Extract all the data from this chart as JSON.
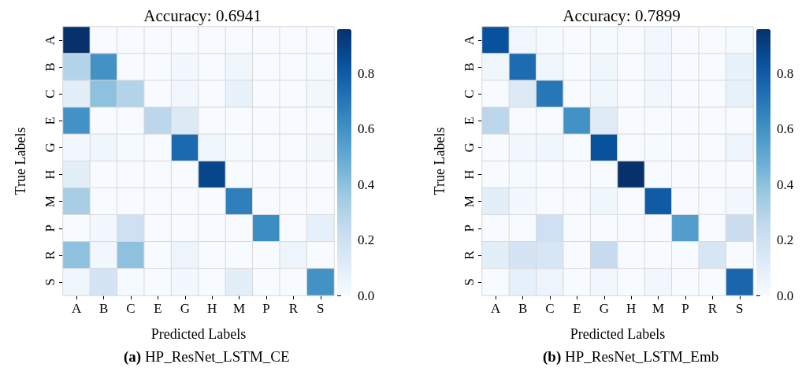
{
  "chart_data": [
    {
      "type": "heatmap",
      "title": "Accuracy: 0.6941",
      "xlabel": "Predicted Labels",
      "ylabel": "True Labels",
      "annotations": [
        "(a) HP_ResNet_LSTM_CE"
      ],
      "categories": [
        "A",
        "B",
        "C",
        "E",
        "G",
        "H",
        "M",
        "P",
        "R",
        "S"
      ],
      "y_categories": [
        "A",
        "B",
        "C",
        "E",
        "G",
        "H",
        "M",
        "P",
        "R",
        "S"
      ],
      "cells": [
        [
          0.96,
          0,
          0,
          0,
          0,
          0,
          0,
          0,
          0,
          0
        ],
        [
          0.3,
          0.6,
          0,
          0,
          0.02,
          0,
          0.04,
          0,
          0,
          0.01
        ],
        [
          0.1,
          0.4,
          0.3,
          0,
          0.03,
          0,
          0.07,
          0,
          0,
          0.03
        ],
        [
          0.6,
          0,
          0,
          0.27,
          0.13,
          0,
          0,
          0,
          0,
          0
        ],
        [
          0.02,
          0.04,
          0.01,
          0,
          0.75,
          0.04,
          0.01,
          0,
          0,
          0.03
        ],
        [
          0.1,
          0,
          0,
          0,
          0,
          0.88,
          0,
          0,
          0,
          0
        ],
        [
          0.33,
          0,
          0,
          0,
          0,
          0,
          0.67,
          0,
          0,
          0
        ],
        [
          0,
          0.02,
          0.2,
          0,
          0,
          0,
          0,
          0.62,
          0,
          0.08
        ],
        [
          0.4,
          0.03,
          0.4,
          0,
          0.05,
          0,
          0,
          0,
          0.05,
          0
        ],
        [
          0.04,
          0.17,
          0.01,
          0,
          0.02,
          0,
          0.1,
          0,
          0,
          0.6
        ]
      ],
      "clim": [
        0,
        0.96
      ],
      "cticks": [
        {
          "value": 0,
          "label": "0.0"
        },
        {
          "value": 0.2,
          "label": "0.2"
        },
        {
          "value": 0.4,
          "label": "0.4"
        },
        {
          "value": 0.6,
          "label": "0.6"
        },
        {
          "value": 0.8,
          "label": "0.8"
        }
      ]
    },
    {
      "type": "heatmap",
      "title": "Accuracy: 0.7899",
      "xlabel": "Predicted Labels",
      "ylabel": "True Labels",
      "annotations": [
        "(b) HP_ResNet_LSTM_Emb"
      ],
      "categories": [
        "A",
        "B",
        "C",
        "E",
        "G",
        "H",
        "M",
        "P",
        "R",
        "S"
      ],
      "y_categories": [
        "A",
        "B",
        "C",
        "E",
        "G",
        "H",
        "M",
        "P",
        "R",
        "S"
      ],
      "cells": [
        [
          0.84,
          0.03,
          0.01,
          0,
          0.01,
          0,
          0.03,
          0,
          0,
          0.01
        ],
        [
          0.04,
          0.74,
          0.04,
          0,
          0.04,
          0,
          0.03,
          0,
          0,
          0.07
        ],
        [
          0,
          0.13,
          0.7,
          0,
          0.04,
          0,
          0.03,
          0,
          0,
          0.07
        ],
        [
          0.27,
          0,
          0,
          0.6,
          0.12,
          0,
          0,
          0,
          0,
          0
        ],
        [
          0,
          0.02,
          0.04,
          0,
          0.84,
          0,
          0.01,
          0,
          0,
          0.05
        ],
        [
          0,
          0.01,
          0,
          0,
          0,
          0.96,
          0,
          0,
          0,
          0
        ],
        [
          0.1,
          0.02,
          0,
          0,
          0.04,
          0,
          0.8,
          0,
          0,
          0.02
        ],
        [
          0,
          0,
          0.2,
          0,
          0,
          0,
          0,
          0.55,
          0,
          0.22
        ],
        [
          0.1,
          0.17,
          0.16,
          0,
          0.24,
          0,
          0,
          0,
          0.16,
          0
        ],
        [
          0,
          0.08,
          0.05,
          0,
          0.03,
          0,
          0.03,
          0,
          0,
          0.76
        ]
      ],
      "clim": [
        0,
        0.96
      ],
      "cticks": [
        {
          "value": 0,
          "label": "0.0"
        },
        {
          "value": 0.2,
          "label": "0.2"
        },
        {
          "value": 0.4,
          "label": "0.4"
        },
        {
          "value": 0.6,
          "label": "0.6"
        },
        {
          "value": 0.8,
          "label": "0.8"
        }
      ]
    }
  ]
}
